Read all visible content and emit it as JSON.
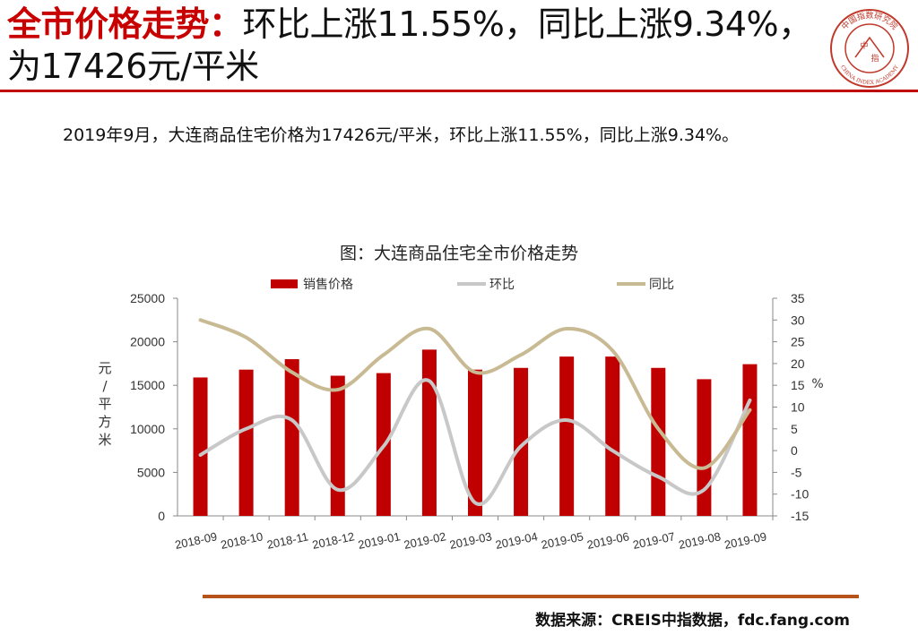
{
  "header": {
    "title_red": "全市价格走势：",
    "title_rest": "环比上涨11.55%，同比上涨9.34%，为17426元/平米"
  },
  "logo": {
    "ring_text": "中国指数研究院",
    "ring_text_en": "CHINA INDEX ACADEMY",
    "center_top": "中",
    "center_bottom": "指",
    "color": "#c0392b"
  },
  "summary": "2019年9月，大连商品住宅价格为17426元/平米，环比上涨11.55%，同比上涨9.34%。",
  "chart_data": {
    "type": "bar+line",
    "title": "图：大连商品住宅全市价格走势",
    "categories": [
      "2018-09",
      "2018-10",
      "2018-11",
      "2018-12",
      "2019-01",
      "2019-02",
      "2019-03",
      "2019-04",
      "2019-05",
      "2019-06",
      "2019-07",
      "2019-08",
      "2019-09"
    ],
    "legend": [
      "销售价格",
      "环比",
      "同比"
    ],
    "legend_position": "top",
    "y_left": {
      "label": "元/平方米",
      "min": 0,
      "max": 25000,
      "ticks": [
        0,
        5000,
        10000,
        15000,
        20000,
        25000
      ]
    },
    "y_right": {
      "label": "%",
      "min": -15,
      "max": 35,
      "ticks": [
        -15,
        -10,
        -5,
        0,
        5,
        10,
        15,
        20,
        25,
        30,
        35
      ]
    },
    "series": [
      {
        "name": "销售价格",
        "kind": "bar",
        "axis": "left",
        "color": "#c00000",
        "values": [
          15900,
          16800,
          18000,
          16100,
          16400,
          19100,
          16800,
          17000,
          18300,
          18300,
          17000,
          15700,
          17426
        ]
      },
      {
        "name": "环比",
        "kind": "line",
        "axis": "right",
        "color": "#c8c8c8",
        "values": [
          -1,
          5,
          7,
          -9,
          1,
          16,
          -12,
          1,
          7,
          0,
          -6,
          -9,
          11.55
        ]
      },
      {
        "name": "同比",
        "kind": "line",
        "axis": "right",
        "color": "#c8ba93",
        "values": [
          30,
          26,
          18,
          14,
          22,
          28,
          18,
          22,
          28,
          23,
          5,
          -4,
          9.34
        ]
      }
    ],
    "grid": false
  },
  "source": "数据来源：CREIS中指数据，fdc.fang.com",
  "colors": {
    "accent": "#c80000",
    "rule": "#c00000",
    "footer_rule": "#b5531a"
  }
}
